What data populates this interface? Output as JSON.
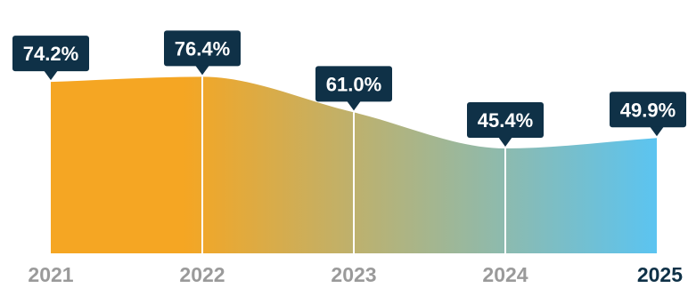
{
  "chart_data": {
    "type": "area",
    "categories": [
      "2021",
      "2022",
      "2023",
      "2024",
      "2025"
    ],
    "values": [
      74.2,
      76.4,
      61.0,
      45.4,
      49.9
    ],
    "value_labels": [
      "74.2%",
      "76.4%",
      "61.0%",
      "45.4%",
      "49.9%"
    ],
    "highlight_category": "2025",
    "grid": false,
    "legend": "none"
  },
  "colors": {
    "gradient_start": "#F5A623",
    "gradient_end": "#5BC4F1",
    "callout_bg": "#0F3147",
    "callout_text": "#FFFFFF",
    "axis_label": "#9A9A9A",
    "axis_label_highlight": "#0F3147",
    "divider": "#FFFFFF"
  }
}
